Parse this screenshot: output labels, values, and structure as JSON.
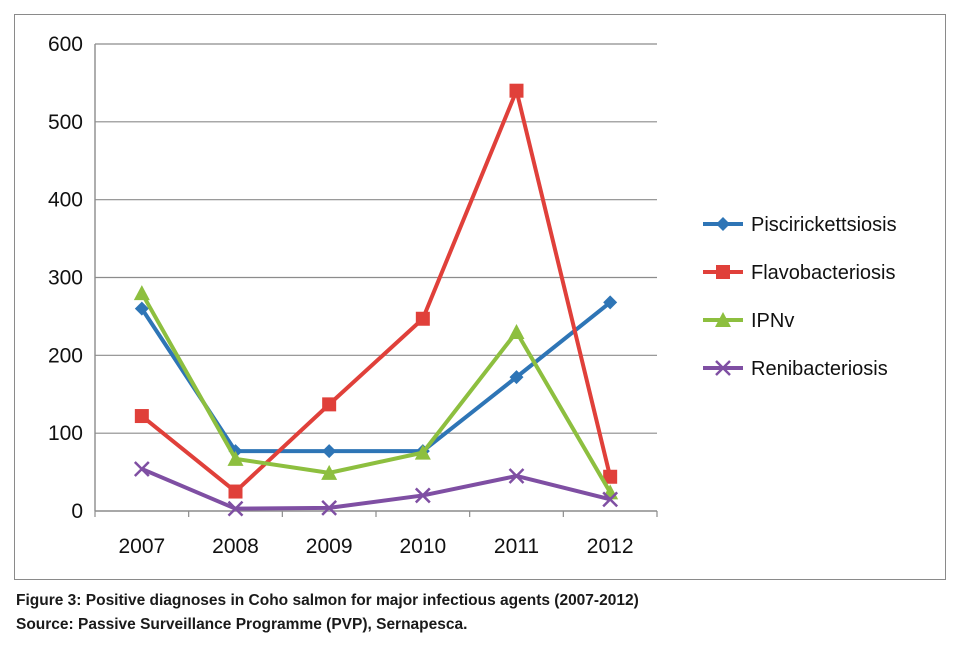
{
  "chart_data": {
    "type": "line",
    "title": "",
    "xlabel": "",
    "ylabel": "",
    "categories": [
      "2007",
      "2008",
      "2009",
      "2010",
      "2011",
      "2012"
    ],
    "ylim": [
      0,
      600
    ],
    "yticks": [
      0,
      100,
      200,
      300,
      400,
      500,
      600
    ],
    "grid": "horizontal",
    "legend_position": "right",
    "series": [
      {
        "name": "Piscirickettsiosis",
        "values": [
          260,
          77,
          77,
          77,
          172,
          268
        ],
        "color": "#2e75b6",
        "marker": "diamond"
      },
      {
        "name": "Flavobacteriosis",
        "values": [
          122,
          25,
          137,
          247,
          540,
          44
        ],
        "color": "#e0403a",
        "marker": "square"
      },
      {
        "name": "IPNv",
        "values": [
          280,
          67,
          49,
          75,
          230,
          24
        ],
        "color": "#8dbf3f",
        "marker": "triangle"
      },
      {
        "name": "Renibacteriosis",
        "values": [
          54,
          3,
          4,
          20,
          45,
          15
        ],
        "color": "#7f4fa3",
        "marker": "x"
      }
    ]
  },
  "caption": {
    "line1": "Figure 3: Positive diagnoses in Coho salmon for major infectious agents (2007-2012)",
    "line2": "Source: Passive Surveillance Programme (PVP), Sernapesca."
  }
}
